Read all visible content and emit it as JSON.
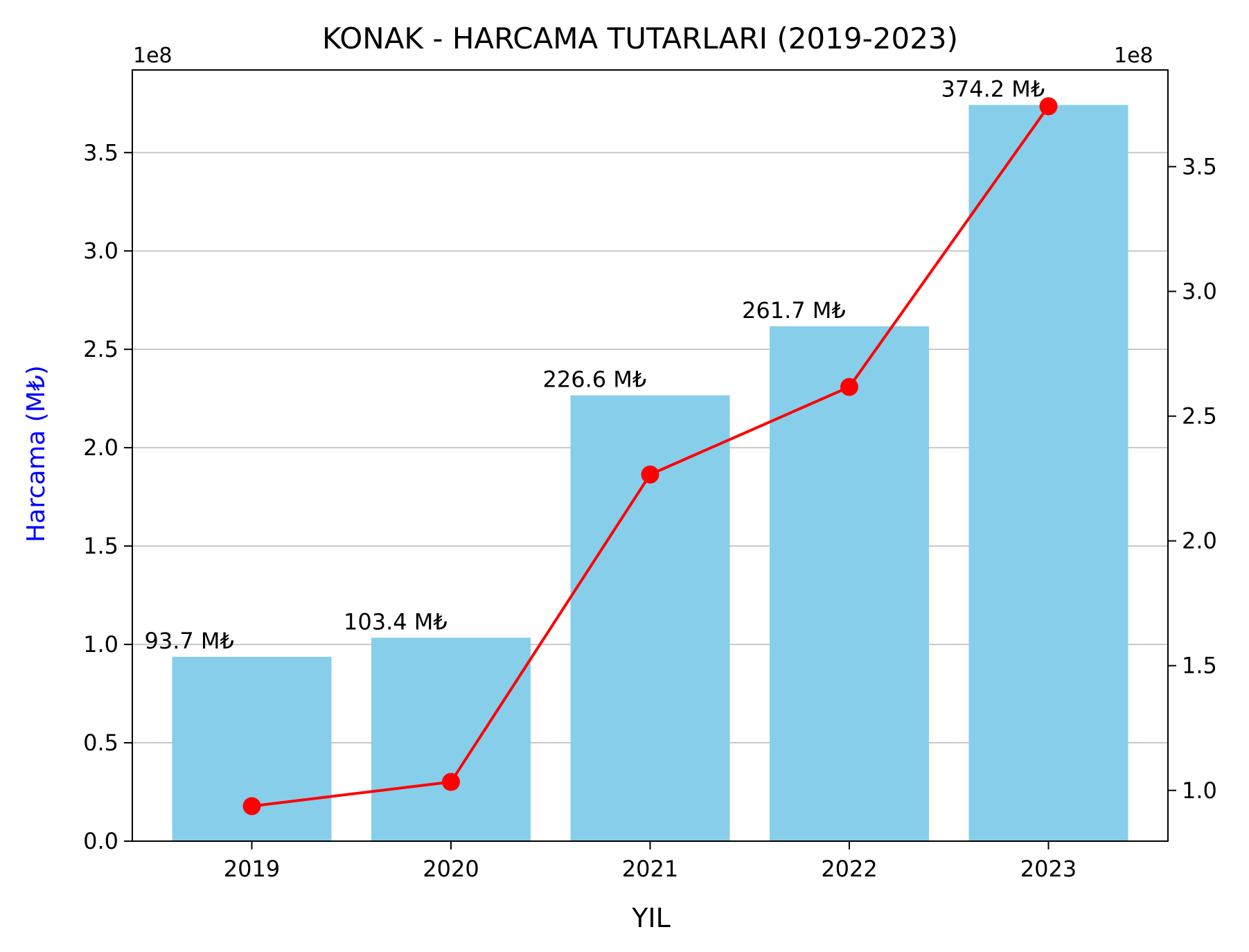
{
  "chart_data": {
    "type": "bar",
    "title": "KONAK - HARCAMA TUTARLARI (2019-2023)",
    "xlabel": "YIL",
    "ylabel": "Harcama (M₺)",
    "categories": [
      "2019",
      "2020",
      "2021",
      "2022",
      "2023"
    ],
    "series": [
      {
        "type": "bar",
        "axis": "left",
        "values": [
          93700000,
          103400000,
          226600000,
          261700000,
          374200000
        ],
        "labels": [
          "93.7 M₺",
          "103.4 M₺",
          "226.6 M₺",
          "261.7 M₺",
          "374.2 M₺"
        ]
      },
      {
        "type": "line",
        "axis": "right",
        "values": [
          93700000,
          103400000,
          226600000,
          261700000,
          374200000
        ]
      }
    ],
    "y_left": {
      "range": [
        0,
        392000000
      ],
      "ticks": [
        0,
        50000000,
        100000000,
        150000000,
        200000000,
        250000000,
        300000000,
        350000000
      ],
      "tick_labels": [
        "0.0",
        "0.5",
        "1.0",
        "1.5",
        "2.0",
        "2.5",
        "3.0",
        "3.5"
      ],
      "offset_label": "1e8"
    },
    "y_right": {
      "range": [
        79665000,
        388735000
      ],
      "ticks": [
        100000000,
        150000000,
        200000000,
        250000000,
        300000000,
        350000000
      ],
      "tick_labels": [
        "1.0",
        "1.5",
        "2.0",
        "2.5",
        "3.0",
        "3.5"
      ],
      "offset_label": "1e8"
    },
    "grid": "y",
    "colors": {
      "bar": "#87ceeb",
      "line": "#ff0000",
      "ylabel": "#0000ff",
      "grid": "#c8c8c8"
    }
  }
}
